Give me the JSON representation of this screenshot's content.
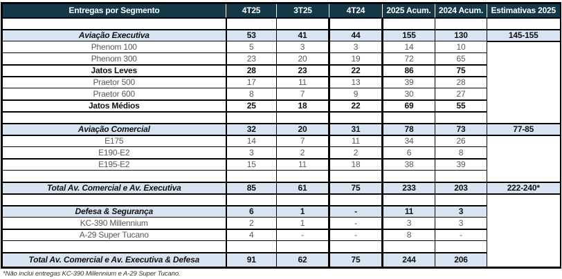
{
  "table": {
    "columns": [
      "Entregas por Segmento",
      "4T25",
      "3T25",
      "4T24",
      "2025 Acum.",
      "2024 Acum.",
      "Estimativas 2025"
    ],
    "rows": [
      {
        "type": "blank",
        "label": "",
        "values": [
          "",
          "",
          "",
          "",
          ""
        ],
        "estimate": ""
      },
      {
        "type": "segment",
        "label": "Aviação Executiva",
        "values": [
          "53",
          "41",
          "44",
          "155",
          "130"
        ],
        "estimate": "145-155"
      },
      {
        "type": "model",
        "label": "Phenom 100",
        "values": [
          "5",
          "3",
          "3",
          "14",
          "10"
        ]
      },
      {
        "type": "model",
        "label": "Phenom 300",
        "values": [
          "23",
          "20",
          "19",
          "72",
          "65"
        ]
      },
      {
        "type": "subtotal",
        "label": "Jatos Leves",
        "values": [
          "28",
          "23",
          "22",
          "86",
          "75"
        ]
      },
      {
        "type": "model",
        "label": "Praetor 500",
        "values": [
          "17",
          "11",
          "13",
          "39",
          "28"
        ]
      },
      {
        "type": "model",
        "label": "Praetor 600",
        "values": [
          "8",
          "7",
          "9",
          "30",
          "27"
        ]
      },
      {
        "type": "subtotal",
        "label": "Jatos Médios",
        "values": [
          "25",
          "18",
          "22",
          "69",
          "55"
        ]
      },
      {
        "type": "blank",
        "label": "",
        "values": [
          "",
          "",
          "",
          "",
          ""
        ]
      },
      {
        "type": "segment",
        "label": "Aviação Comercial",
        "values": [
          "32",
          "20",
          "31",
          "78",
          "73"
        ],
        "estimate": "77-85"
      },
      {
        "type": "model",
        "label": "E175",
        "values": [
          "14",
          "7",
          "11",
          "34",
          "26"
        ]
      },
      {
        "type": "model",
        "label": "E190-E2",
        "values": [
          "3",
          "2",
          "2",
          "6",
          "8"
        ]
      },
      {
        "type": "model",
        "label": "E195-E2",
        "values": [
          "15",
          "11",
          "18",
          "38",
          "39"
        ]
      },
      {
        "type": "blank",
        "label": "",
        "values": [
          "",
          "",
          "",
          "",
          ""
        ]
      },
      {
        "type": "total",
        "label": "Total Av. Comercial e Av. Executiva",
        "values": [
          "85",
          "61",
          "75",
          "233",
          "203"
        ],
        "estimate": "222-240*"
      },
      {
        "type": "blank",
        "label": "",
        "values": [
          "",
          "",
          "",
          "",
          ""
        ]
      },
      {
        "type": "segment",
        "label": "Defesa & Segurança",
        "values": [
          "6",
          "1",
          "-",
          "11",
          "3"
        ]
      },
      {
        "type": "model",
        "label": "KC-390 Millennium",
        "values": [
          "2",
          "1",
          "-",
          "3",
          "3"
        ]
      },
      {
        "type": "model",
        "label": "A-29 Super Tucano",
        "values": [
          "4",
          "-",
          "-",
          "8",
          "-"
        ]
      },
      {
        "type": "blank",
        "label": "",
        "values": [
          "",
          "",
          "",
          "",
          ""
        ]
      },
      {
        "type": "total",
        "label": "Total Av. Comercial e Av. Executiva & Defesa",
        "values": [
          "91",
          "62",
          "75",
          "244",
          "206"
        ]
      }
    ]
  },
  "footnote": "*Não inclui entregas KC-390 Millennium e A-29 Super Tucano.",
  "colors": {
    "header_bg": "#143848",
    "header_text": "#ffffff",
    "highlight_row_bg": "#d8e4f1",
    "body_text": "#595959",
    "strong_text": "#111111",
    "border": "#000000"
  }
}
